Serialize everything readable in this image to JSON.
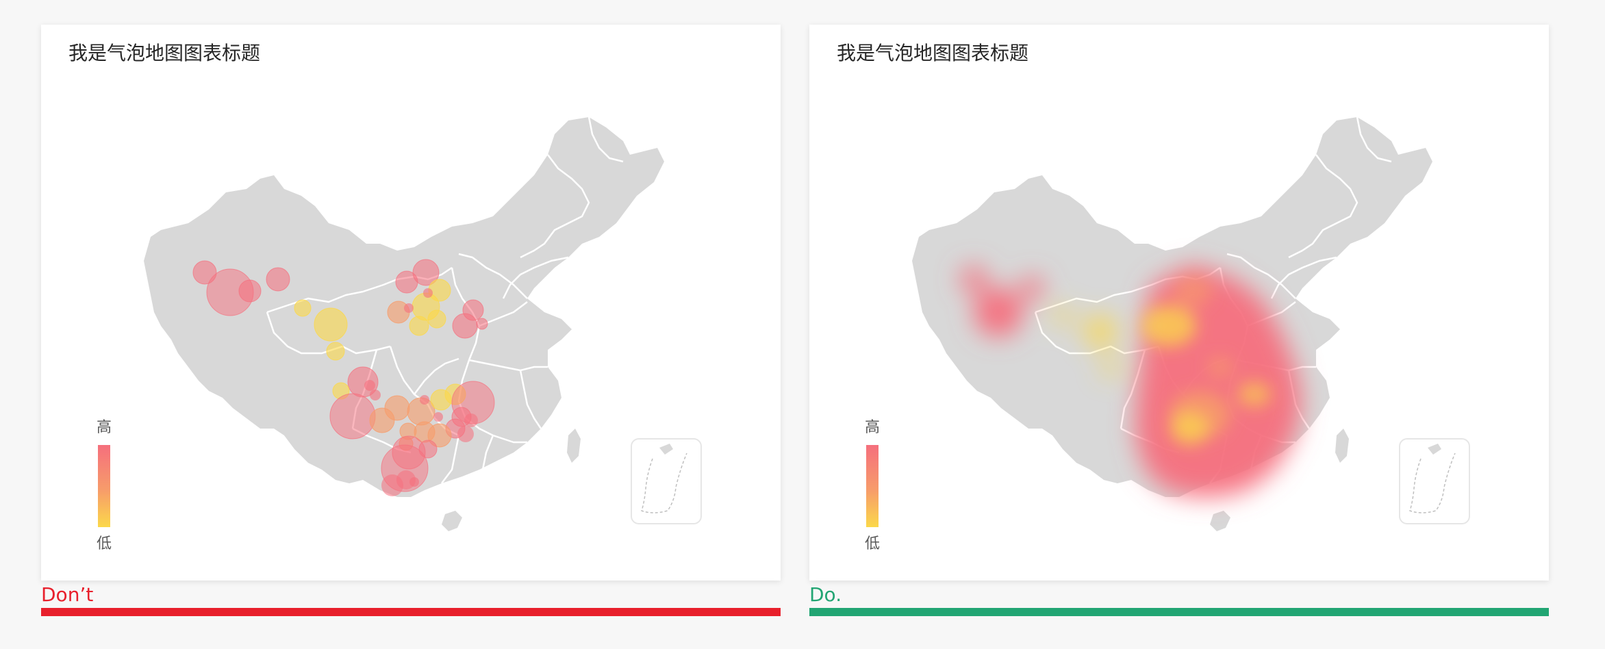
{
  "panels": [
    {
      "id": "dont",
      "title": "我是气泡地图图表标题",
      "legend": {
        "high": "高",
        "low": "低"
      },
      "caption": "Don’t",
      "caption_color": "#e8202c",
      "style": "bubbles"
    },
    {
      "id": "do",
      "title": "我是气泡地图图表标题",
      "legend": {
        "high": "高",
        "low": "低"
      },
      "caption": "Do.",
      "caption_color": "#22a573",
      "style": "heatmap"
    }
  ],
  "colors": {
    "map_fill": "#d8d8d8",
    "province_border": "#ffffff",
    "high": "#f56f7d",
    "mid": "#f79c6a",
    "low": "#fbd84a"
  }
}
